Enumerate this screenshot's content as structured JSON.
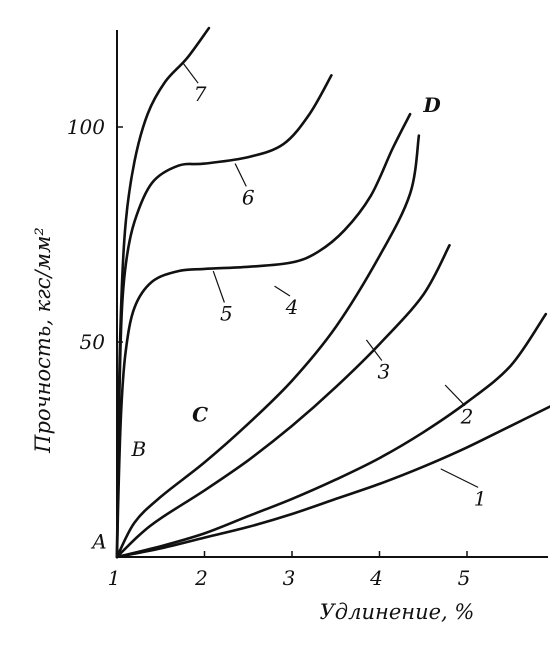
{
  "chart_data": {
    "type": "line",
    "title": "",
    "xlabel": "Удлинение, %",
    "ylabel": "Прочность, кгс/мм²",
    "xlim": [
      1,
      6
    ],
    "ylim": [
      0,
      125
    ],
    "x_ticks": [
      "1",
      "2",
      "3",
      "4",
      "5"
    ],
    "y_ticks": [
      "50",
      "100"
    ],
    "grid": false,
    "legend": "none",
    "line_color": "#111111",
    "series": [
      {
        "name": "1",
        "points": [
          [
            1.0,
            0
          ],
          [
            1.5,
            2.0
          ],
          [
            2.0,
            4.5
          ],
          [
            2.5,
            7.0
          ],
          [
            3.0,
            10.0
          ],
          [
            3.5,
            13.5
          ],
          [
            4.0,
            17.0
          ],
          [
            4.5,
            21.0
          ],
          [
            5.0,
            25.5
          ],
          [
            5.5,
            30.5
          ],
          [
            6.0,
            35.5
          ]
        ]
      },
      {
        "name": "2",
        "points": [
          [
            1.0,
            0
          ],
          [
            1.5,
            2.5
          ],
          [
            2.0,
            5.5
          ],
          [
            2.5,
            9.5
          ],
          [
            3.0,
            13.5
          ],
          [
            3.5,
            18.0
          ],
          [
            4.0,
            23.0
          ],
          [
            4.5,
            29.0
          ],
          [
            5.0,
            36.0
          ],
          [
            5.5,
            44.5
          ],
          [
            5.9,
            56.5
          ]
        ]
      },
      {
        "name": "3",
        "points": [
          [
            1.0,
            0
          ],
          [
            1.25,
            5.0
          ],
          [
            1.5,
            9.0
          ],
          [
            2.0,
            15.5
          ],
          [
            2.5,
            22.5
          ],
          [
            3.0,
            30.5
          ],
          [
            3.5,
            39.5
          ],
          [
            4.0,
            49.5
          ],
          [
            4.5,
            61.0
          ],
          [
            4.8,
            72.5
          ]
        ]
      },
      {
        "name": "4",
        "points": [
          [
            1.0,
            0
          ],
          [
            1.2,
            8.0
          ],
          [
            1.5,
            14.0
          ],
          [
            2.0,
            22.0
          ],
          [
            2.5,
            31.0
          ],
          [
            3.0,
            41.0
          ],
          [
            3.5,
            53.5
          ],
          [
            4.0,
            70.0
          ],
          [
            4.35,
            84.5
          ],
          [
            4.45,
            98.0
          ]
        ]
      },
      {
        "name": "5",
        "points": [
          [
            1.0,
            0
          ],
          [
            1.02,
            18.0
          ],
          [
            1.05,
            35.0
          ],
          [
            1.1,
            48.0
          ],
          [
            1.2,
            58.0
          ],
          [
            1.4,
            64.0
          ],
          [
            1.7,
            66.5
          ],
          [
            2.0,
            67.0
          ],
          [
            2.5,
            67.5
          ],
          [
            3.0,
            68.5
          ],
          [
            3.3,
            71.0
          ],
          [
            3.6,
            76.0
          ],
          [
            3.9,
            84.0
          ],
          [
            4.15,
            95.0
          ],
          [
            4.35,
            103.0
          ]
        ]
      },
      {
        "name": "6",
        "points": [
          [
            1.0,
            0
          ],
          [
            1.02,
            30.0
          ],
          [
            1.05,
            55.0
          ],
          [
            1.1,
            68.0
          ],
          [
            1.2,
            78.0
          ],
          [
            1.4,
            87.0
          ],
          [
            1.7,
            91.0
          ],
          [
            2.0,
            91.5
          ],
          [
            2.5,
            93.0
          ],
          [
            2.9,
            96.0
          ],
          [
            3.2,
            103.0
          ],
          [
            3.45,
            112.0
          ]
        ]
      },
      {
        "name": "7",
        "points": [
          [
            1.0,
            0
          ],
          [
            1.02,
            35.0
          ],
          [
            1.05,
            60.0
          ],
          [
            1.1,
            78.0
          ],
          [
            1.2,
            92.0
          ],
          [
            1.35,
            103.0
          ],
          [
            1.55,
            110.5
          ],
          [
            1.8,
            116.0
          ],
          [
            2.05,
            123.0
          ]
        ]
      }
    ],
    "curve_labels": [
      {
        "text": "1",
        "x": 5.15,
        "y": 12.0
      },
      {
        "text": "2",
        "x": 5.0,
        "y": 31.0
      },
      {
        "text": "3",
        "x": 4.05,
        "y": 41.5
      },
      {
        "text": "4",
        "x": 3.0,
        "y": 56.5
      },
      {
        "text": "5",
        "x": 2.25,
        "y": 55.0
      },
      {
        "text": "6",
        "x": 2.5,
        "y": 82.0
      },
      {
        "text": "7",
        "x": 1.95,
        "y": 106.0
      }
    ],
    "point_labels": [
      {
        "text": "A",
        "x": 0.8,
        "y": 2.0
      },
      {
        "text": "B",
        "x": 1.25,
        "y": 23.5
      },
      {
        "text": "C",
        "x": 1.95,
        "y": 31.5
      },
      {
        "text": "D",
        "x": 4.6,
        "y": 103.5
      }
    ]
  }
}
